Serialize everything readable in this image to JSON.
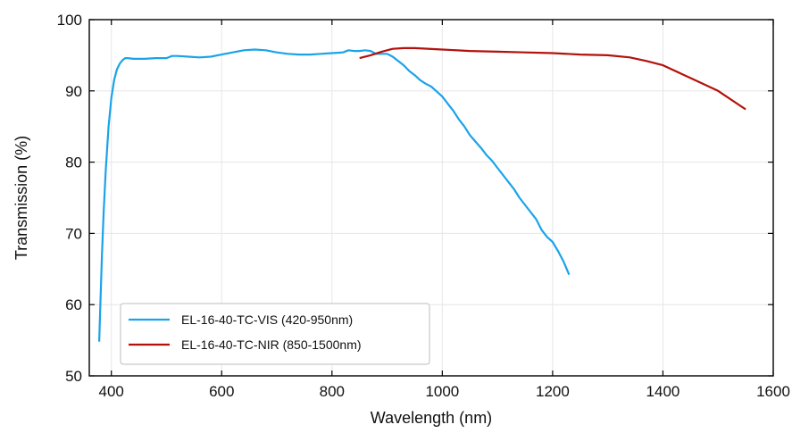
{
  "chart_data": {
    "type": "line",
    "title": "",
    "xlabel": "Wavelength (nm)",
    "ylabel": "Transmission (%)",
    "xlim": [
      360,
      1600
    ],
    "ylim": [
      50,
      100
    ],
    "x_ticks": [
      400,
      600,
      800,
      1000,
      1200,
      1400,
      1600
    ],
    "y_ticks": [
      50,
      60,
      70,
      80,
      90,
      100
    ],
    "grid": true,
    "legend_position": "bottom-left",
    "series": [
      {
        "name": "EL-16-40-TC-VIS (420-950nm)",
        "color": "#1aa3e8",
        "points": [
          [
            378,
            54.8
          ],
          [
            380,
            60.0
          ],
          [
            383,
            67.0
          ],
          [
            386,
            73.0
          ],
          [
            390,
            79.0
          ],
          [
            395,
            85.0
          ],
          [
            400,
            89.0
          ],
          [
            405,
            91.5
          ],
          [
            410,
            93.0
          ],
          [
            415,
            93.8
          ],
          [
            420,
            94.3
          ],
          [
            425,
            94.6
          ],
          [
            430,
            94.6
          ],
          [
            440,
            94.5
          ],
          [
            460,
            94.5
          ],
          [
            480,
            94.6
          ],
          [
            500,
            94.6
          ],
          [
            510,
            94.9
          ],
          [
            520,
            94.9
          ],
          [
            540,
            94.8
          ],
          [
            560,
            94.7
          ],
          [
            580,
            94.8
          ],
          [
            600,
            95.1
          ],
          [
            620,
            95.4
          ],
          [
            640,
            95.7
          ],
          [
            660,
            95.8
          ],
          [
            680,
            95.7
          ],
          [
            700,
            95.4
          ],
          [
            720,
            95.2
          ],
          [
            740,
            95.1
          ],
          [
            760,
            95.1
          ],
          [
            780,
            95.2
          ],
          [
            800,
            95.3
          ],
          [
            820,
            95.4
          ],
          [
            830,
            95.7
          ],
          [
            840,
            95.6
          ],
          [
            850,
            95.6
          ],
          [
            860,
            95.7
          ],
          [
            870,
            95.6
          ],
          [
            880,
            95.2
          ],
          [
            890,
            95.2
          ],
          [
            900,
            95.2
          ],
          [
            910,
            94.8
          ],
          [
            920,
            94.2
          ],
          [
            930,
            93.6
          ],
          [
            940,
            92.8
          ],
          [
            950,
            92.2
          ],
          [
            960,
            91.5
          ],
          [
            970,
            91.0
          ],
          [
            980,
            90.6
          ],
          [
            990,
            89.9
          ],
          [
            1000,
            89.2
          ],
          [
            1010,
            88.2
          ],
          [
            1020,
            87.2
          ],
          [
            1030,
            86.0
          ],
          [
            1040,
            85.0
          ],
          [
            1050,
            83.8
          ],
          [
            1060,
            82.9
          ],
          [
            1070,
            82.0
          ],
          [
            1080,
            81.0
          ],
          [
            1090,
            80.2
          ],
          [
            1100,
            79.2
          ],
          [
            1110,
            78.2
          ],
          [
            1120,
            77.2
          ],
          [
            1130,
            76.2
          ],
          [
            1140,
            75.0
          ],
          [
            1150,
            74.0
          ],
          [
            1160,
            73.0
          ],
          [
            1170,
            72.0
          ],
          [
            1180,
            70.5
          ],
          [
            1190,
            69.5
          ],
          [
            1200,
            68.8
          ],
          [
            1210,
            67.5
          ],
          [
            1220,
            66.0
          ],
          [
            1230,
            64.2
          ]
        ]
      },
      {
        "name": "EL-16-40-TC-NIR (850-1500nm)",
        "color": "#b3110b",
        "points": [
          [
            850,
            94.6
          ],
          [
            870,
            95.0
          ],
          [
            890,
            95.5
          ],
          [
            910,
            95.9
          ],
          [
            930,
            96.0
          ],
          [
            950,
            96.0
          ],
          [
            1000,
            95.8
          ],
          [
            1050,
            95.6
          ],
          [
            1100,
            95.5
          ],
          [
            1150,
            95.4
          ],
          [
            1200,
            95.3
          ],
          [
            1250,
            95.1
          ],
          [
            1300,
            95.0
          ],
          [
            1340,
            94.7
          ],
          [
            1370,
            94.2
          ],
          [
            1400,
            93.6
          ],
          [
            1450,
            91.8
          ],
          [
            1500,
            90.0
          ],
          [
            1550,
            87.4
          ]
        ]
      }
    ]
  }
}
